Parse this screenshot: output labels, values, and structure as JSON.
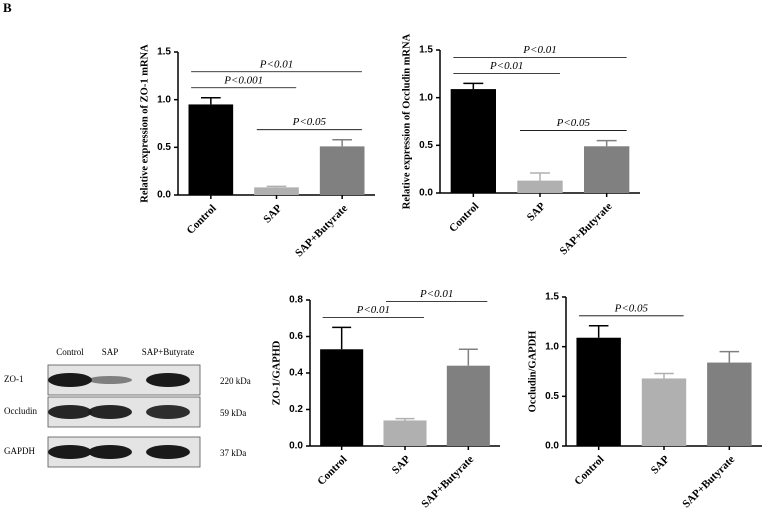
{
  "panel_label": "B",
  "blot": {
    "lanes": [
      "Control",
      "SAP",
      "SAP+Butyrate"
    ],
    "rows": [
      {
        "name": "ZO-1",
        "size": "220 kDa"
      },
      {
        "name": "Occludin",
        "size": "59 kDa"
      },
      {
        "name": "GAPDH",
        "size": "37 kDa"
      }
    ]
  },
  "chart_data": [
    {
      "type": "bar",
      "ylabel": "Relative expression of ZO-1 mRNA",
      "categories": [
        "Control",
        "SAP",
        "SAP+Butyrate"
      ],
      "values": [
        0.95,
        0.08,
        0.51
      ],
      "errors": [
        0.07,
        0.01,
        0.07
      ],
      "colors": [
        "#000000",
        "#b0b0b0",
        "#808080"
      ],
      "ylim": [
        0,
        1.5
      ],
      "yticks": [
        {
          "value": 0,
          "label": "0.0"
        },
        0.5,
        {
          "value": 1,
          "label": "1.0"
        },
        1.5
      ],
      "annotations": [
        {
          "text": "P<0.05",
          "between": [
            1,
            2
          ]
        },
        {
          "text": "P<0.001",
          "between": [
            0,
            1
          ]
        },
        {
          "text": "P<0.01",
          "between": [
            0,
            2
          ]
        }
      ]
    },
    {
      "type": "bar",
      "ylabel": "Relative expression of Occludin mRNA",
      "categories": [
        "Control",
        "SAP",
        "SAP+Butyrate"
      ],
      "values": [
        1.09,
        0.13,
        0.49
      ],
      "errors": [
        0.06,
        0.08,
        0.06
      ],
      "colors": [
        "#000000",
        "#b0b0b0",
        "#808080"
      ],
      "ylim": [
        0,
        1.5
      ],
      "yticks": [
        {
          "value": 0,
          "label": "0.0"
        },
        0.5,
        {
          "value": 1,
          "label": "1.0"
        },
        1.5
      ],
      "annotations": [
        {
          "text": "P<0.05",
          "between": [
            1,
            2
          ]
        },
        {
          "text": "P<0.01",
          "between": [
            0,
            1
          ]
        },
        {
          "text": "P<0.01",
          "between": [
            0,
            2
          ]
        }
      ]
    },
    {
      "type": "bar",
      "ylabel": "ZO-1/GAPHD",
      "categories": [
        "Control",
        "SAP",
        "SAP+Butyrate"
      ],
      "values": [
        0.53,
        0.14,
        0.44
      ],
      "errors": [
        0.12,
        0.01,
        0.09
      ],
      "colors": [
        "#000000",
        "#b0b0b0",
        "#808080"
      ],
      "ylim": [
        0,
        0.8
      ],
      "yticks": [
        {
          "value": 0,
          "label": "0.0"
        },
        0.2,
        0.4,
        0.6,
        0.8
      ],
      "annotations": [
        {
          "text": "P<0.01",
          "between": [
            0,
            1
          ]
        },
        {
          "text": "P<0.01",
          "between": [
            1,
            2
          ]
        }
      ]
    },
    {
      "type": "bar",
      "ylabel": "Occludin/GAPDH",
      "categories": [
        "Control",
        "SAP",
        "SAP+Butyrate"
      ],
      "values": [
        1.09,
        0.68,
        0.84
      ],
      "errors": [
        0.12,
        0.05,
        0.11
      ],
      "colors": [
        "#000000",
        "#b0b0b0",
        "#808080"
      ],
      "ylim": [
        0,
        1.5
      ],
      "yticks": [
        {
          "value": 0,
          "label": "0.0"
        },
        0.5,
        {
          "value": 1,
          "label": "1.0"
        },
        1.5
      ],
      "annotations": [
        {
          "text": "P<0.05",
          "between": [
            0,
            1
          ]
        }
      ]
    }
  ]
}
